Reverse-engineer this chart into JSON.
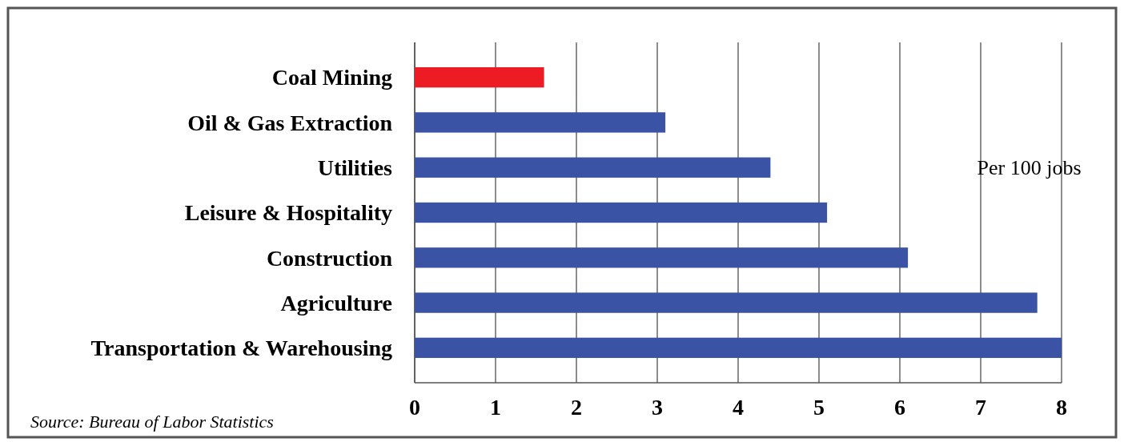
{
  "chart_data": {
    "type": "bar",
    "orientation": "horizontal",
    "categories": [
      "Coal Mining",
      "Oil & Gas Extraction",
      "Utilities",
      "Leisure & Hospitality",
      "Construction",
      "Agriculture",
      "Transportation & Warehousing"
    ],
    "values": [
      1.6,
      3.1,
      4.4,
      5.1,
      6.1,
      7.7,
      8.0
    ],
    "colors": [
      "#ed1c24",
      "#3a53a4",
      "#3a53a4",
      "#3a53a4",
      "#3a53a4",
      "#3a53a4",
      "#3a53a4"
    ],
    "xlim": [
      0,
      8
    ],
    "xticks": [
      0,
      1,
      2,
      3,
      4,
      5,
      6,
      7,
      8
    ],
    "grid": "x",
    "annotations": [
      "Per 100 jobs",
      "Source: Bureau of Labor Statistics"
    ]
  }
}
